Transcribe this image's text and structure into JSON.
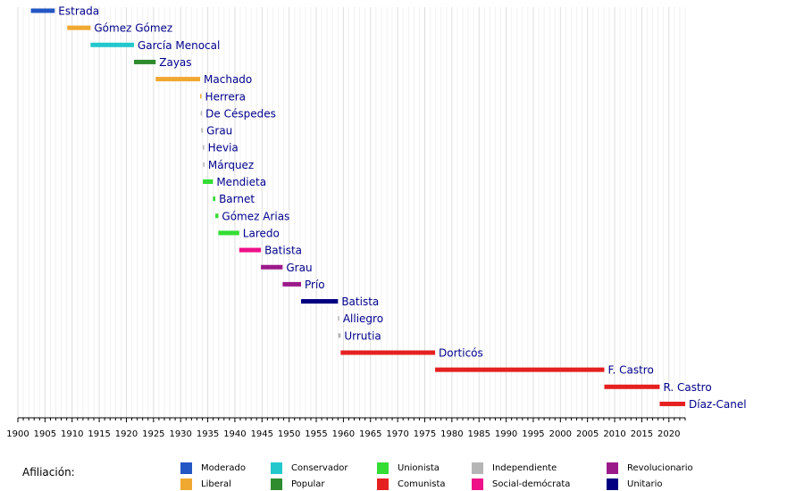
{
  "chart_data": {
    "type": "bar",
    "orientation": "horizontal-timeline",
    "xlim": [
      1900,
      2023
    ],
    "x_ticks": [
      1900,
      1905,
      1910,
      1915,
      1920,
      1925,
      1930,
      1935,
      1940,
      1945,
      1950,
      1955,
      1960,
      1965,
      1970,
      1975,
      1980,
      1985,
      1990,
      1995,
      2000,
      2005,
      2010,
      2015,
      2020
    ],
    "grid": true,
    "legend_title": "Afiliación:",
    "legend_position": "bottom",
    "parties": [
      {
        "name": "Moderado",
        "color": "#2456c4"
      },
      {
        "name": "Liberal",
        "color": "#f0a830"
      },
      {
        "name": "Conservador",
        "color": "#22c8cc"
      },
      {
        "name": "Popular",
        "color": "#2e8b2e"
      },
      {
        "name": "Unionista",
        "color": "#33dd33"
      },
      {
        "name": "Comunista",
        "color": "#e52020"
      },
      {
        "name": "Independiente",
        "color": "#b5b5b5"
      },
      {
        "name": "Social-demócrata",
        "color": "#ee1188"
      },
      {
        "name": "Revolucionario",
        "color": "#9b1a8a"
      },
      {
        "name": "Unitario",
        "color": "#000080"
      }
    ],
    "terms": [
      {
        "label": "Estrada",
        "start": 1902.4,
        "end": 1906.8,
        "party": "Moderado"
      },
      {
        "label": "Gómez Gómez",
        "start": 1909.1,
        "end": 1913.4,
        "party": "Liberal"
      },
      {
        "label": "García Menocal",
        "start": 1913.4,
        "end": 1921.4,
        "party": "Conservador"
      },
      {
        "label": "Zayas",
        "start": 1921.4,
        "end": 1925.4,
        "party": "Popular"
      },
      {
        "label": "Machado",
        "start": 1925.4,
        "end": 1933.6,
        "party": "Liberal"
      },
      {
        "label": "Herrera",
        "start": 1933.6,
        "end": 1933.7,
        "party": "Liberal"
      },
      {
        "label": "De Céspedes",
        "start": 1933.7,
        "end": 1933.8,
        "party": "Independiente"
      },
      {
        "label": "Grau",
        "start": 1933.8,
        "end": 1934.1,
        "party": "Independiente"
      },
      {
        "label": "Hevia",
        "start": 1934.1,
        "end": 1934.15,
        "party": "Independiente"
      },
      {
        "label": "Márquez",
        "start": 1934.15,
        "end": 1934.2,
        "party": "Independiente"
      },
      {
        "label": "Mendieta",
        "start": 1934.1,
        "end": 1935.95,
        "party": "Unionista"
      },
      {
        "label": "Barnet",
        "start": 1935.95,
        "end": 1936.4,
        "party": "Unionista"
      },
      {
        "label": "Gómez Arias",
        "start": 1936.4,
        "end": 1936.95,
        "party": "Unionista"
      },
      {
        "label": "Laredo",
        "start": 1936.95,
        "end": 1940.8,
        "party": "Unionista"
      },
      {
        "label": "Batista",
        "start": 1940.8,
        "end": 1944.8,
        "party": "Social-demócrata"
      },
      {
        "label": "Grau",
        "start": 1944.8,
        "end": 1948.8,
        "party": "Revolucionario"
      },
      {
        "label": "Prío",
        "start": 1948.8,
        "end": 1952.2,
        "party": "Revolucionario"
      },
      {
        "label": "Batista",
        "start": 1952.2,
        "end": 1959.0,
        "party": "Unitario"
      },
      {
        "label": "Alliegro",
        "start": 1959.0,
        "end": 1959.05,
        "party": "Independiente"
      },
      {
        "label": "Urrutia",
        "start": 1959.05,
        "end": 1959.5,
        "party": "Independiente"
      },
      {
        "label": "Dorticós",
        "start": 1959.5,
        "end": 1976.9,
        "party": "Comunista"
      },
      {
        "label": "F. Castro",
        "start": 1976.9,
        "end": 2008.1,
        "party": "Comunista"
      },
      {
        "label": "R. Castro",
        "start": 2008.1,
        "end": 2018.3,
        "party": "Comunista"
      },
      {
        "label": "Díaz-Canel",
        "start": 2018.3,
        "end": 2023.0,
        "party": "Comunista"
      }
    ]
  }
}
